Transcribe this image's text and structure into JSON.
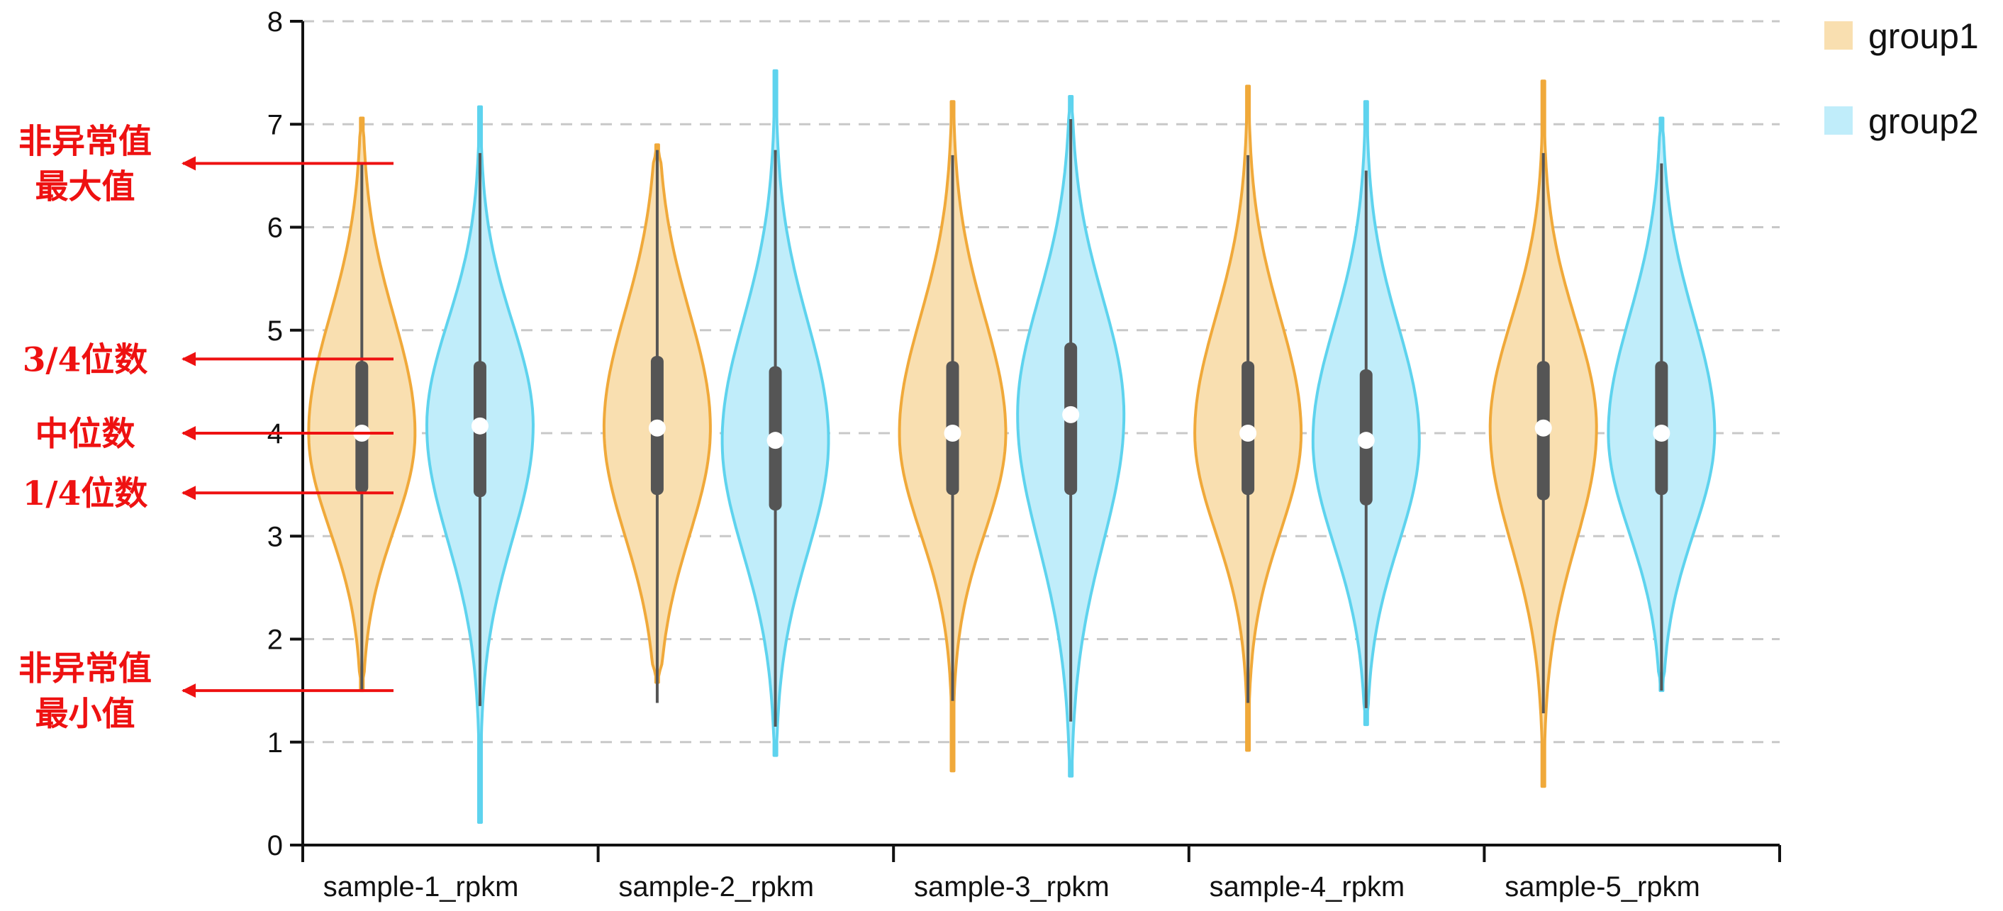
{
  "chart_data": {
    "type": "violin",
    "title": "",
    "xlabel": "",
    "ylabel": "",
    "ylim": [
      0,
      8
    ],
    "yticks": [
      0,
      1,
      2,
      3,
      4,
      5,
      6,
      7,
      8
    ],
    "grid": "horizontal-dashed",
    "legend_position": "top-right",
    "categories": [
      "sample-1_rpkm",
      "sample-2_rpkm",
      "sample-3_rpkm",
      "sample-4_rpkm",
      "sample-5_rpkm"
    ],
    "series": [
      {
        "name": "group1",
        "fill": "#f9dfb0",
        "stroke": "#f0a93a",
        "stats": [
          {
            "min": 1.5,
            "q1": 3.42,
            "median": 4.0,
            "q3": 4.7,
            "whisker_high": 6.62,
            "extent_low": 1.5,
            "extent_high": 7.06
          },
          {
            "min": 1.38,
            "q1": 3.4,
            "median": 4.05,
            "q3": 4.75,
            "whisker_high": 6.75,
            "extent_low": 1.58,
            "extent_high": 6.8
          },
          {
            "min": 1.4,
            "q1": 3.4,
            "median": 4.0,
            "q3": 4.7,
            "whisker_high": 6.7,
            "extent_low": 0.72,
            "extent_high": 7.22
          },
          {
            "min": 1.38,
            "q1": 3.4,
            "median": 4.0,
            "q3": 4.7,
            "whisker_high": 6.7,
            "extent_low": 0.92,
            "extent_high": 7.37
          },
          {
            "min": 1.28,
            "q1": 3.35,
            "median": 4.05,
            "q3": 4.7,
            "whisker_high": 6.72,
            "extent_low": 0.57,
            "extent_high": 7.42
          }
        ]
      },
      {
        "name": "group2",
        "fill": "#c0edfa",
        "stroke": "#5ed3ee",
        "stats": [
          {
            "min": 1.35,
            "q1": 3.38,
            "median": 4.07,
            "q3": 4.7,
            "whisker_high": 6.72,
            "extent_low": 0.22,
            "extent_high": 7.17
          },
          {
            "min": 1.15,
            "q1": 3.25,
            "median": 3.93,
            "q3": 4.65,
            "whisker_high": 6.75,
            "extent_low": 0.87,
            "extent_high": 7.52
          },
          {
            "min": 1.2,
            "q1": 3.4,
            "median": 4.18,
            "q3": 4.88,
            "whisker_high": 7.05,
            "extent_low": 0.67,
            "extent_high": 7.27
          },
          {
            "min": 1.33,
            "q1": 3.3,
            "median": 3.93,
            "q3": 4.62,
            "whisker_high": 6.55,
            "extent_low": 1.17,
            "extent_high": 7.22
          },
          {
            "min": 1.5,
            "q1": 3.4,
            "median": 4.0,
            "q3": 4.7,
            "whisker_high": 6.62,
            "extent_low": 1.5,
            "extent_high": 7.06
          }
        ]
      }
    ],
    "annotations": [
      {
        "lines": [
          "非异常值",
          "最大值"
        ],
        "y": 6.62
      },
      {
        "lines": [
          "3/4位数"
        ],
        "y": 4.72
      },
      {
        "lines": [
          "中位数"
        ],
        "y": 4.0
      },
      {
        "lines": [
          "1/4位数"
        ],
        "y": 3.42
      },
      {
        "lines": [
          "非异常值",
          "最小值"
        ],
        "y": 1.5
      }
    ],
    "colors": {
      "grid": "#c8c8c8",
      "axis": "#111111",
      "box": "#555555",
      "median_dot": "#ffffff",
      "annotation": "#ee1111"
    }
  }
}
